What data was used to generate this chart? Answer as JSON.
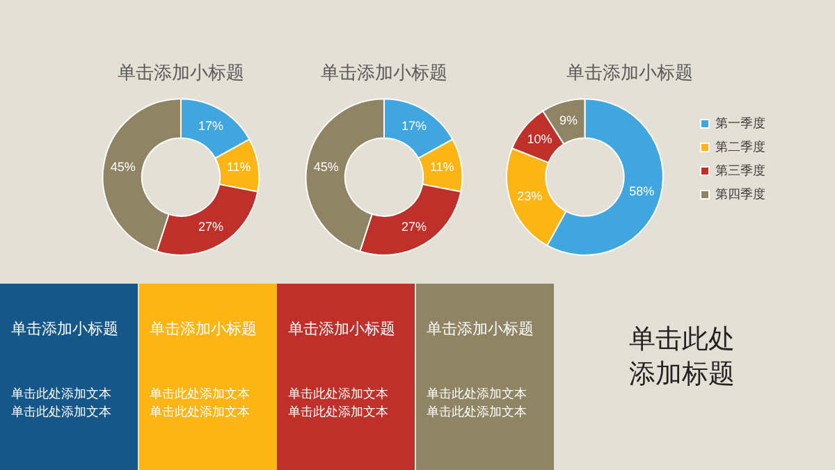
{
  "chart_data": [
    {
      "type": "donut",
      "title": "单击添加小标题",
      "categories": [
        null,
        null,
        null,
        null
      ],
      "values": [
        17,
        11,
        27,
        45
      ],
      "colors": [
        "#40a6e0",
        "#fdb515",
        "#c0302b",
        "#8f8463"
      ],
      "value_labels": [
        "17%",
        "11%",
        "27%",
        "45%"
      ]
    },
    {
      "type": "donut",
      "title": "单击添加小标题",
      "categories": [
        null,
        null,
        null,
        null
      ],
      "values": [
        17,
        11,
        27,
        45
      ],
      "colors": [
        "#40a6e0",
        "#fdb515",
        "#c0302b",
        "#8f8463"
      ],
      "value_labels": [
        "17%",
        "11%",
        "27%",
        "45%"
      ]
    },
    {
      "type": "donut",
      "title": "单击添加小标题",
      "categories": [
        "第一季度",
        "第二季度",
        "第三季度",
        "第四季度"
      ],
      "values": [
        58,
        23,
        10,
        9
      ],
      "colors": [
        "#40a6e0",
        "#fdb515",
        "#c0302b",
        "#8f8463"
      ],
      "value_labels": [
        "58%",
        "23%",
        "10%",
        "9%"
      ],
      "legend": "right"
    },
    {
      "type": "other",
      "title": "单击此处添加标题",
      "colors": [
        "#16578a",
        "#fdb515",
        "#c0302b",
        "#8f8463"
      ],
      "annotations": [
        "单击添加小标题",
        "单击此处添加文本",
        "单击此处添加文本",
        "单击添加小标题",
        "单击此处添加文本",
        "单击此处添加文本",
        "单击添加小标题",
        "单击此处添加文本",
        "单击此处添加文本",
        "单击添加小标题",
        "单击此处添加文本",
        "单击此处添加文本"
      ]
    }
  ]
}
